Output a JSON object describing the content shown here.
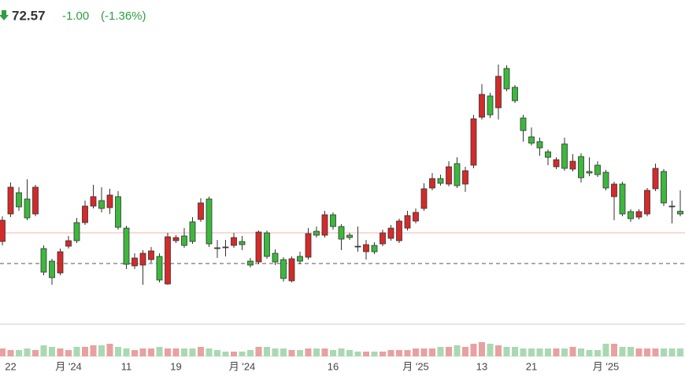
{
  "header": {
    "price": 72.57,
    "change": {
      "value": -1.0,
      "label": "-1.00"
    },
    "change_percent": {
      "value": -1.36,
      "label": "(-1.36%)"
    }
  },
  "chart_data": {
    "type": "candlestick",
    "categories": [
      null,
      "22",
      null,
      null,
      null,
      null,
      null,
      null,
      "月 '24",
      null,
      null,
      null,
      null,
      null,
      null,
      "11",
      null,
      null,
      null,
      null,
      null,
      "19",
      null,
      null,
      null,
      null,
      null,
      null,
      null,
      "月 '24",
      null,
      null,
      null,
      null,
      null,
      null,
      null,
      null,
      null,
      null,
      "16",
      null,
      null,
      null,
      null,
      null,
      null,
      null,
      null,
      null,
      "月 '25",
      null,
      null,
      null,
      null,
      null,
      null,
      null,
      "13",
      null,
      null,
      null,
      null,
      null,
      "21",
      null,
      null,
      null,
      null,
      null,
      null,
      null,
      null,
      "月 '25",
      null,
      null,
      null,
      null,
      null,
      null,
      null,
      null,
      null
    ],
    "open": [
      72.0,
      74.1,
      72.85,
      72.15,
      74.1,
      68.7,
      68.35,
      70.0,
      70.7,
      70.7,
      72.9,
      73.5,
      72.75,
      73.6,
      71.55,
      69.2,
      69.6,
      69.9,
      70.05,
      68.2,
      70.95,
      70.9,
      70.4,
      70.65,
      73.1,
      70.5,
      70.25,
      70.3,
      70.9,
      70.45,
      69.15,
      71.25,
      69.7,
      69.35,
      68.3,
      69.55,
      69.4,
      71.15,
      71.05,
      72.35,
      71.6,
      70.8,
      70.9,
      70.35,
      70.45,
      70.0,
      71.2,
      71.5,
      71.95,
      72.3,
      72.5,
      74.0,
      74.65,
      74.35,
      75.4,
      74.2,
      75.15,
      78.45,
      80.0,
      78.7,
      81.15,
      80.35,
      79.6,
      77.7,
      76.9,
      76.6,
      76.0,
      75.85,
      75.3,
      75.75,
      74.7,
      75.0,
      74.9,
      74.05,
      74.3,
      72.4,
      72.1,
      72.55,
      73.9,
      75.3,
      73.1,
      72.9,
      72.4
    ],
    "high": [
      72.25,
      74.4,
      74.1,
      74.6,
      74.25,
      70.4,
      69.55,
      70.2,
      71.0,
      72.15,
      73.25,
      74.25,
      74.1,
      74.0,
      73.85,
      71.65,
      69.9,
      70.1,
      70.3,
      69.9,
      71.2,
      71.05,
      71.5,
      72.2,
      73.4,
      73.5,
      70.75,
      70.75,
      71.2,
      71.0,
      69.6,
      71.35,
      71.35,
      70.15,
      69.65,
      69.7,
      70.0,
      71.5,
      71.6,
      72.6,
      72.5,
      71.75,
      71.2,
      71.6,
      70.75,
      70.6,
      71.4,
      71.7,
      72.1,
      72.6,
      72.75,
      74.35,
      75.0,
      74.9,
      75.75,
      76.0,
      75.4,
      78.7,
      80.65,
      80.1,
      81.9,
      81.85,
      80.6,
      78.7,
      77.9,
      77.25,
      76.5,
      76.0,
      77.25,
      76.2,
      76.25,
      76.0,
      75.75,
      75.2,
      74.45,
      74.45,
      72.7,
      72.7,
      74.05,
      75.6,
      75.25,
      73.25,
      73.9
    ],
    "low": [
      70.4,
      72.2,
      72.6,
      72.0,
      72.25,
      68.5,
      67.9,
      68.5,
      70.2,
      70.55,
      71.7,
      72.75,
      72.5,
      72.4,
      71.4,
      68.9,
      68.9,
      67.9,
      69.3,
      68.05,
      67.9,
      70.55,
      70.25,
      70.5,
      71.9,
      70.3,
      69.6,
      69.7,
      70.25,
      70.1,
      69.0,
      69.2,
      69.55,
      69.15,
      68.1,
      68.05,
      69.2,
      69.5,
      70.9,
      70.9,
      71.4,
      70.1,
      70.75,
      70.0,
      69.5,
      69.85,
      70.35,
      70.7,
      70.55,
      71.35,
      71.8,
      72.6,
      73.9,
      74.2,
      74.15,
      74.05,
      73.8,
      75.3,
      78.4,
      78.5,
      78.4,
      80.2,
      79.45,
      77.0,
      76.75,
      76.1,
      75.5,
      75.25,
      75.15,
      75.1,
      74.4,
      74.8,
      74.75,
      73.9,
      72.0,
      72.25,
      71.9,
      72.05,
      72.25,
      73.85,
      72.9,
      71.8,
      72.25
    ],
    "close": [
      70.65,
      72.4,
      73.75,
      73.35,
      72.4,
      70.2,
      69.4,
      68.65,
      70.35,
      71.85,
      71.85,
      72.9,
      73.25,
      72.8,
      73.5,
      71.5,
      69.1,
      69.15,
      69.5,
      69.7,
      67.95,
      70.7,
      71.0,
      71.9,
      72.05,
      73.35,
      70.25,
      70.3,
      70.4,
      70.65,
      69.4,
      69.35,
      71.2,
      69.9,
      69.5,
      68.15,
      69.7,
      69.65,
      71.3,
      71.05,
      72.35,
      71.6,
      71.05,
      70.35,
      70.0,
      70.4,
      70.5,
      70.85,
      70.7,
      71.5,
      71.95,
      72.75,
      74.05,
      74.65,
      74.3,
      75.6,
      74.3,
      75.5,
      78.55,
      79.9,
      79.15,
      81.65,
      80.45,
      78.5,
      77.3,
      77.0,
      76.35,
      75.4,
      76.85,
      75.25,
      76.05,
      75.1,
      75.5,
      75.05,
      73.5,
      74.3,
      72.55,
      72.2,
      72.4,
      74.0,
      75.1,
      72.9,
      72.57
    ],
    "volume": [
      5,
      4,
      4,
      5,
      4,
      7,
      6,
      5,
      4,
      6,
      6,
      7,
      7,
      8,
      6,
      5,
      4,
      5,
      5,
      6,
      5,
      5,
      5,
      5,
      6,
      5,
      4,
      3,
      3,
      3,
      4,
      6,
      6,
      5,
      5,
      4,
      4,
      5,
      5,
      5,
      4,
      5,
      4,
      3,
      3,
      3,
      3,
      4,
      4,
      4,
      5,
      5,
      5,
      6,
      6,
      7,
      6,
      8,
      9,
      8,
      7,
      6,
      6,
      5,
      5,
      5,
      5,
      5,
      5,
      6,
      5,
      4,
      4,
      8,
      8,
      6,
      6,
      5,
      5,
      5,
      5,
      5,
      5
    ],
    "up_color": "#3cb83c",
    "down_color": "#d42a2a",
    "flat_color": "#555555",
    "up_volume_color": "#a9d9b2",
    "down_volume_color": "#e9a0a0",
    "ylim": [
      65.5,
      84.0
    ],
    "vlim": [
      0,
      10
    ],
    "hlines": [
      {
        "value": 71.2,
        "color": "#f3b5ad",
        "style": "solid"
      },
      {
        "value": 69.25,
        "color": "#555555",
        "style": "dashed"
      }
    ]
  }
}
